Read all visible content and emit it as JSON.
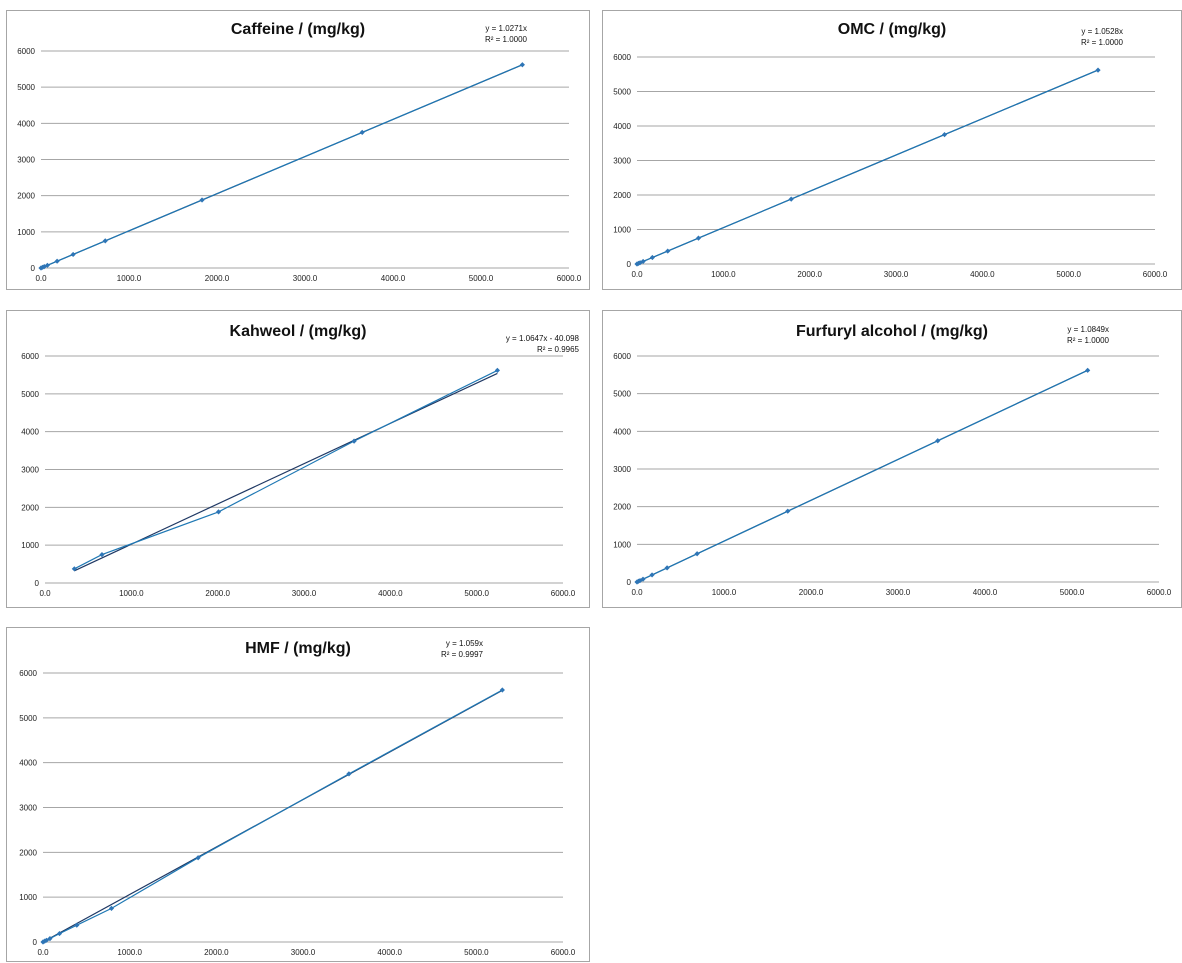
{
  "chart_data": [
    {
      "type": "scatter",
      "title": "Caffeine / (mg/kg)",
      "equation": "y = 1.0271x",
      "r_squared": "R² = 1.0000",
      "xlim": [
        0,
        6000
      ],
      "ylim": [
        0,
        6000
      ],
      "x_ticks": [
        "0.0",
        "1000.0",
        "2000.0",
        "3000.0",
        "4000.0",
        "5000.0",
        "6000.0"
      ],
      "y_ticks": [
        "0",
        "1000",
        "2000",
        "3000",
        "4000",
        "5000",
        "6000"
      ],
      "grid": true,
      "series": [
        {
          "x": [
            0,
            18,
            37,
            73,
            183,
            365,
            730,
            1830,
            3650,
            5470
          ],
          "y": [
            0,
            19,
            38,
            75,
            188,
            375,
            750,
            1880,
            3750,
            5620
          ]
        }
      ],
      "trendline": {
        "x": [
          0,
          5470
        ],
        "y": [
          0,
          5618
        ]
      }
    },
    {
      "type": "scatter",
      "title": "OMC / (mg/kg)",
      "equation": "y = 1.0528x",
      "r_squared": "R² = 1.0000",
      "xlim": [
        0,
        6000
      ],
      "ylim": [
        0,
        6000
      ],
      "x_ticks": [
        "0.0",
        "1000.0",
        "2000.0",
        "3000.0",
        "4000.0",
        "5000.0",
        "6000.0"
      ],
      "y_ticks": [
        "0",
        "1000",
        "2000",
        "3000",
        "4000",
        "5000",
        "6000"
      ],
      "grid": true,
      "series": [
        {
          "x": [
            0,
            18,
            36,
            71,
            178,
            356,
            712,
            1786,
            3562,
            5340
          ],
          "y": [
            0,
            19,
            38,
            75,
            188,
            375,
            750,
            1880,
            3750,
            5620
          ]
        }
      ],
      "trendline": {
        "x": [
          0,
          5340
        ],
        "y": [
          0,
          5622
        ]
      }
    },
    {
      "type": "scatter",
      "title": "Kahweol / (mg/kg)",
      "equation": "y = 1.0647x - 40.098",
      "r_squared": "R² = 0.9965",
      "xlim": [
        0,
        6000
      ],
      "ylim": [
        0,
        6000
      ],
      "x_ticks": [
        "0.0",
        "1000.0",
        "2000.0",
        "3000.0",
        "4000.0",
        "5000.0",
        "6000.0"
      ],
      "y_ticks": [
        "0",
        "1000",
        "2000",
        "3000",
        "4000",
        "5000",
        "6000"
      ],
      "grid": true,
      "series": [
        {
          "x": [
            340,
            660,
            2010,
            3580,
            5240
          ],
          "y": [
            375,
            750,
            1880,
            3750,
            5620
          ]
        }
      ],
      "trendline": {
        "x": [
          340,
          5240
        ],
        "y": [
          322,
          5539
        ]
      }
    },
    {
      "type": "scatter",
      "title": "Furfuryl alcohol / (mg/kg)",
      "equation": "y = 1.0849x",
      "r_squared": "R² = 1.0000",
      "xlim": [
        0,
        6000
      ],
      "ylim": [
        0,
        6000
      ],
      "x_ticks": [
        "0.0",
        "1000.0",
        "2000.0",
        "3000.0",
        "4000.0",
        "5000.0",
        "6000.0"
      ],
      "y_ticks": [
        "0",
        "1000",
        "2000",
        "3000",
        "4000",
        "5000",
        "6000"
      ],
      "grid": true,
      "series": [
        {
          "x": [
            0,
            17,
            35,
            69,
            173,
            346,
            691,
            1733,
            3457,
            5180
          ],
          "y": [
            0,
            19,
            38,
            75,
            188,
            375,
            750,
            1880,
            3750,
            5620
          ]
        }
      ],
      "trendline": {
        "x": [
          0,
          5180
        ],
        "y": [
          0,
          5620
        ]
      }
    },
    {
      "type": "scatter",
      "title": "HMF / (mg/kg)",
      "equation": "y = 1.059x",
      "r_squared": "R² = 0.9997",
      "xlim": [
        0,
        6000
      ],
      "ylim": [
        0,
        6000
      ],
      "x_ticks": [
        "0.0",
        "1000.0",
        "2000.0",
        "3000.0",
        "4000.0",
        "5000.0",
        "6000.0"
      ],
      "y_ticks": [
        "0",
        "1000",
        "2000",
        "3000",
        "4000",
        "5000",
        "6000"
      ],
      "grid": true,
      "series": [
        {
          "x": [
            0,
            20,
            40,
            80,
            190,
            390,
            790,
            1790,
            3530,
            5300
          ],
          "y": [
            0,
            19,
            38,
            75,
            188,
            375,
            750,
            1880,
            3750,
            5620
          ]
        }
      ],
      "trendline": {
        "x": [
          0,
          5300
        ],
        "y": [
          0,
          5613
        ]
      }
    }
  ],
  "colors": {
    "data_series": "#1f78b4",
    "data_marker": "#2e75b6",
    "trendline": "#1f3864",
    "gridline": "#a6a6a6",
    "panel_border": "#a6a6a6"
  }
}
